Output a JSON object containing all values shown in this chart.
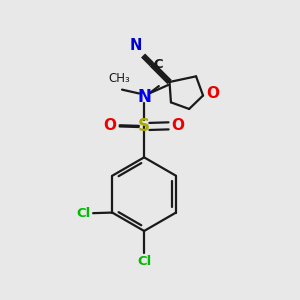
{
  "bg_color": "#e8e8e8",
  "bond_color": "#1a1a1a",
  "atom_colors": {
    "N": "#0000ee",
    "O": "#ee0000",
    "S": "#aaaa00",
    "Cl": "#00bb00",
    "C": "#1a1a1a",
    "N_cyan": "#0000cc"
  },
  "figsize": [
    3.0,
    3.0
  ],
  "dpi": 100,
  "lw": 1.6
}
